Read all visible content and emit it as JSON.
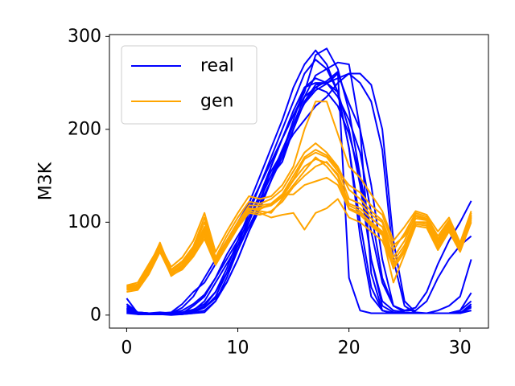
{
  "chart_data": {
    "type": "line",
    "title": "",
    "xlabel": "",
    "ylabel": "M3K",
    "xlim": [
      -1.55,
      32.55
    ],
    "ylim": [
      -14,
      302
    ],
    "xticks": [
      0,
      10,
      20,
      30
    ],
    "yticks": [
      0,
      100,
      200,
      300
    ],
    "grid": false,
    "legend": {
      "placement": "upper-left",
      "entries": [
        {
          "label": "real",
          "color": "#0000ff"
        },
        {
          "label": "gen",
          "color": "#ffa500"
        }
      ]
    },
    "x": [
      0,
      1,
      2,
      3,
      4,
      5,
      6,
      7,
      8,
      9,
      10,
      11,
      12,
      13,
      14,
      15,
      16,
      17,
      18,
      19,
      20,
      21,
      22,
      23,
      24,
      25,
      26,
      27,
      28,
      29,
      30,
      31
    ],
    "series": [
      {
        "group": "real",
        "color": "#0000ff",
        "values": [
          18,
          2,
          1,
          1,
          0,
          1,
          2,
          3,
          15,
          35,
          60,
          90,
          120,
          160,
          190,
          215,
          240,
          280,
          287,
          265,
          220,
          150,
          60,
          10,
          3,
          2,
          2,
          2,
          2,
          2,
          3,
          8
        ]
      },
      {
        "group": "real",
        "color": "#0000ff",
        "values": [
          10,
          3,
          2,
          2,
          1,
          2,
          4,
          10,
          25,
          50,
          80,
          110,
          140,
          170,
          200,
          230,
          260,
          275,
          265,
          240,
          180,
          100,
          30,
          5,
          2,
          2,
          2,
          2,
          2,
          2,
          2,
          10
        ]
      },
      {
        "group": "real",
        "color": "#0000ff",
        "values": [
          8,
          3,
          2,
          3,
          2,
          8,
          20,
          40,
          60,
          80,
          100,
          120,
          150,
          180,
          210,
          245,
          270,
          285,
          270,
          240,
          200,
          140,
          60,
          15,
          5,
          3,
          2,
          2,
          5,
          10,
          20,
          60
        ]
      },
      {
        "group": "real",
        "color": "#0000ff",
        "values": [
          5,
          2,
          1,
          1,
          1,
          2,
          10,
          20,
          40,
          60,
          80,
          100,
          130,
          160,
          190,
          220,
          245,
          255,
          250,
          235,
          210,
          175,
          110,
          40,
          10,
          5,
          5,
          15,
          40,
          60,
          75,
          85
        ]
      },
      {
        "group": "real",
        "color": "#0000ff",
        "values": [
          3,
          1,
          1,
          2,
          3,
          12,
          25,
          35,
          55,
          75,
          95,
          115,
          140,
          165,
          190,
          215,
          235,
          245,
          240,
          225,
          195,
          150,
          90,
          35,
          10,
          5,
          8,
          25,
          55,
          80,
          100,
          123
        ]
      },
      {
        "group": "real",
        "color": "#0000ff",
        "values": [
          2,
          2,
          1,
          1,
          2,
          3,
          5,
          8,
          20,
          45,
          75,
          105,
          130,
          155,
          175,
          195,
          210,
          225,
          235,
          250,
          260,
          250,
          230,
          178,
          60,
          10,
          2,
          2,
          2,
          2,
          2,
          5
        ]
      },
      {
        "group": "real",
        "color": "#0000ff",
        "values": [
          6,
          2,
          1,
          1,
          1,
          2,
          5,
          15,
          35,
          55,
          75,
          95,
          120,
          145,
          175,
          210,
          245,
          250,
          250,
          255,
          260,
          260,
          248,
          200,
          80,
          15,
          3,
          2,
          2,
          2,
          5,
          15
        ]
      },
      {
        "group": "real",
        "color": "#0000ff",
        "values": [
          12,
          3,
          2,
          1,
          2,
          5,
          12,
          22,
          40,
          65,
          85,
          105,
          125,
          150,
          178,
          205,
          228,
          242,
          249,
          260,
          228,
          200,
          140,
          60,
          10,
          3,
          2,
          2,
          2,
          2,
          5,
          24
        ]
      },
      {
        "group": "real",
        "color": "#0000ff",
        "values": [
          4,
          1,
          1,
          1,
          1,
          1,
          3,
          8,
          18,
          35,
          60,
          90,
          115,
          145,
          170,
          200,
          230,
          248,
          250,
          240,
          180,
          85,
          20,
          5,
          2,
          2,
          2,
          2,
          2,
          2,
          2,
          12
        ]
      },
      {
        "group": "real",
        "color": "#0000ff",
        "values": [
          2,
          1,
          1,
          1,
          1,
          1,
          2,
          5,
          15,
          40,
          70,
          100,
          130,
          150,
          165,
          200,
          230,
          245,
          252,
          262,
          40,
          5,
          2,
          2,
          2,
          2,
          2,
          2,
          2,
          2,
          3,
          5
        ]
      },
      {
        "group": "real",
        "color": "#0000ff",
        "values": [
          7,
          2,
          2,
          2,
          2,
          3,
          6,
          12,
          25,
          45,
          70,
          95,
          118,
          145,
          175,
          205,
          235,
          258,
          265,
          272,
          270,
          200,
          45,
          5,
          2,
          2,
          2,
          2,
          2,
          2,
          2,
          9
        ]
      },
      {
        "group": "gen",
        "color": "#ffa500",
        "values": [
          27,
          28,
          45,
          72,
          42,
          50,
          65,
          85,
          55,
          75,
          95,
          115,
          112,
          110,
          125,
          140,
          155,
          170,
          160,
          145,
          115,
          110,
          100,
          90,
          55,
          70,
          100,
          100,
          75,
          95,
          72,
          105
        ]
      },
      {
        "group": "gen",
        "color": "#ffa500",
        "values": [
          30,
          32,
          52,
          78,
          48,
          56,
          72,
          100,
          60,
          80,
          100,
          118,
          118,
          120,
          130,
          150,
          170,
          178,
          172,
          158,
          125,
          120,
          108,
          100,
          62,
          80,
          108,
          104,
          82,
          100,
          75,
          110
        ]
      },
      {
        "group": "gen",
        "color": "#ffa500",
        "values": [
          28,
          29,
          48,
          70,
          45,
          52,
          68,
          92,
          57,
          77,
          98,
          113,
          116,
          118,
          127,
          145,
          160,
          168,
          164,
          152,
          120,
          115,
          104,
          95,
          58,
          75,
          104,
          102,
          78,
          97,
          73,
          106
        ]
      },
      {
        "group": "gen",
        "color": "#ffa500",
        "values": [
          32,
          35,
          55,
          75,
          52,
          62,
          80,
          110,
          68,
          90,
          110,
          128,
          125,
          128,
          140,
          160,
          200,
          230,
          230,
          195,
          160,
          148,
          130,
          112,
          80,
          95,
          112,
          108,
          90,
          105,
          78,
          112
        ]
      },
      {
        "group": "gen",
        "color": "#ffa500",
        "values": [
          25,
          27,
          44,
          68,
          43,
          49,
          63,
          82,
          54,
          74,
          94,
          110,
          108,
          112,
          122,
          138,
          150,
          160,
          165,
          150,
          118,
          112,
          98,
          88,
          50,
          68,
          98,
          96,
          72,
          92,
          70,
          102
        ]
      },
      {
        "group": "gen",
        "color": "#ffa500",
        "values": [
          30,
          31,
          50,
          73,
          46,
          54,
          70,
          95,
          58,
          80,
          100,
          115,
          114,
          120,
          130,
          130,
          140,
          144,
          148,
          140,
          114,
          108,
          96,
          86,
          35,
          65,
          96,
          94,
          70,
          90,
          68,
          100
        ]
      },
      {
        "group": "gen",
        "color": "#ffa500",
        "values": [
          29,
          30,
          47,
          71,
          44,
          53,
          67,
          88,
          56,
          78,
          97,
          112,
          110,
          105,
          108,
          110,
          92,
          110,
          115,
          125,
          105,
          100,
          90,
          80,
          52,
          72,
          100,
          98,
          74,
          94,
          70,
          104
        ]
      },
      {
        "group": "gen",
        "color": "#ffa500",
        "values": [
          31,
          33,
          53,
          76,
          49,
          58,
          74,
          105,
          62,
          85,
          105,
          122,
          120,
          125,
          135,
          155,
          175,
          185,
          175,
          160,
          135,
          125,
          112,
          102,
          70,
          88,
          110,
          106,
          85,
          102,
          76,
          108
        ]
      },
      {
        "group": "gen",
        "color": "#ffa500",
        "values": [
          28,
          30,
          46,
          69,
          45,
          51,
          66,
          90,
          55,
          75,
          96,
          114,
          115,
          118,
          128,
          146,
          168,
          175,
          170,
          155,
          140,
          132,
          118,
          108,
          75,
          85,
          106,
          103,
          80,
          98,
          74,
          107
        ]
      }
    ]
  }
}
